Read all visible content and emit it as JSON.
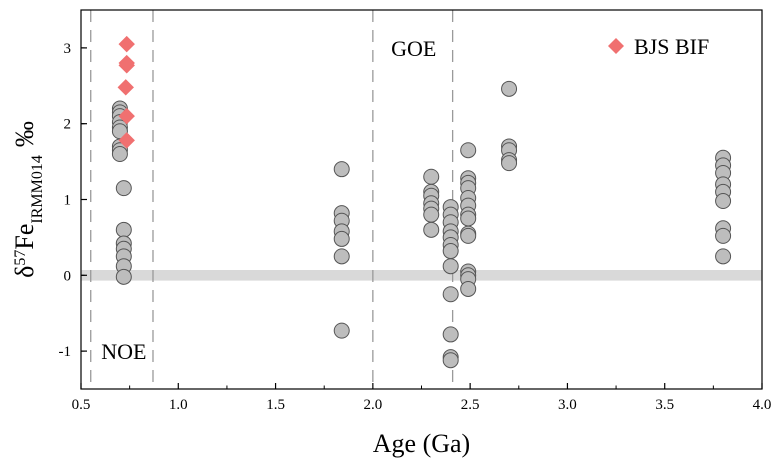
{
  "chart_data": {
    "type": "scatter",
    "xlabel": "Age (Ga)",
    "ylabel": {
      "delta": "δ",
      "mass": "57",
      "element": "Fe",
      "subscript": "IRMM014",
      "unit": "‰"
    },
    "xlim": [
      0.5,
      4.0
    ],
    "ylim": [
      -1.5,
      3.5
    ],
    "x_ticks": [
      0.5,
      1.0,
      1.5,
      2.0,
      2.5,
      3.0,
      3.5,
      4.0
    ],
    "x_tick_labels": [
      "0.5",
      "1.0",
      "1.5",
      "2.0",
      "2.5",
      "3.0",
      "3.5",
      "4.0"
    ],
    "y_ticks": [
      -1,
      0,
      1,
      2,
      3
    ],
    "y_tick_labels": [
      "-1",
      "0",
      "1",
      "2",
      "3"
    ],
    "grid": false,
    "legend_position": "top-right",
    "reference_band": {
      "y_min": -0.07,
      "y_max": 0.07,
      "color": "#d9d9d9"
    },
    "reference_lines": [
      {
        "x": 0.55
      },
      {
        "x": 0.87
      },
      {
        "x": 2.0
      },
      {
        "x": 2.41
      }
    ],
    "annotations": [
      {
        "text": "NOE",
        "x": 0.72,
        "y": -1.0
      },
      {
        "text": "GOE",
        "x": 2.21,
        "y": 3.0
      }
    ],
    "series": [
      {
        "marker": "circle",
        "fill": "#bdbdbd",
        "stroke": "#555555",
        "points": [
          [
            0.7,
            2.2
          ],
          [
            0.7,
            2.15
          ],
          [
            0.7,
            2.1
          ],
          [
            0.7,
            2.02
          ],
          [
            0.7,
            1.95
          ],
          [
            0.7,
            1.9
          ],
          [
            0.7,
            1.7
          ],
          [
            0.7,
            1.65
          ],
          [
            0.7,
            1.6
          ],
          [
            0.72,
            1.15
          ],
          [
            0.72,
            0.6
          ],
          [
            0.72,
            0.42
          ],
          [
            0.72,
            0.35
          ],
          [
            0.72,
            0.25
          ],
          [
            0.72,
            0.12
          ],
          [
            0.72,
            -0.02
          ],
          [
            1.84,
            1.4
          ],
          [
            1.84,
            0.82
          ],
          [
            1.84,
            0.72
          ],
          [
            1.84,
            0.58
          ],
          [
            1.84,
            0.48
          ],
          [
            1.84,
            0.25
          ],
          [
            1.84,
            -0.73
          ],
          [
            2.3,
            1.3
          ],
          [
            2.3,
            1.1
          ],
          [
            2.3,
            1.05
          ],
          [
            2.3,
            0.95
          ],
          [
            2.3,
            0.88
          ],
          [
            2.3,
            0.8
          ],
          [
            2.3,
            0.6
          ],
          [
            2.4,
            0.9
          ],
          [
            2.4,
            0.8
          ],
          [
            2.4,
            0.7
          ],
          [
            2.4,
            0.58
          ],
          [
            2.4,
            0.5
          ],
          [
            2.4,
            0.4
          ],
          [
            2.4,
            0.32
          ],
          [
            2.4,
            0.12
          ],
          [
            2.4,
            -0.25
          ],
          [
            2.4,
            -0.78
          ],
          [
            2.4,
            -1.08
          ],
          [
            2.4,
            -1.12
          ],
          [
            2.49,
            1.65
          ],
          [
            2.49,
            1.28
          ],
          [
            2.49,
            1.22
          ],
          [
            2.49,
            1.15
          ],
          [
            2.49,
            1.02
          ],
          [
            2.49,
            0.92
          ],
          [
            2.49,
            0.8
          ],
          [
            2.49,
            0.75
          ],
          [
            2.49,
            0.55
          ],
          [
            2.49,
            0.52
          ],
          [
            2.49,
            0.05
          ],
          [
            2.49,
            0.0
          ],
          [
            2.49,
            -0.05
          ],
          [
            2.49,
            -0.18
          ],
          [
            2.7,
            2.46
          ],
          [
            2.7,
            1.7
          ],
          [
            2.7,
            1.65
          ],
          [
            2.7,
            1.52
          ],
          [
            2.7,
            1.48
          ],
          [
            3.8,
            1.55
          ],
          [
            3.8,
            1.45
          ],
          [
            3.8,
            1.35
          ],
          [
            3.8,
            1.2
          ],
          [
            3.8,
            1.1
          ],
          [
            3.8,
            0.98
          ],
          [
            3.8,
            0.62
          ],
          [
            3.8,
            0.52
          ],
          [
            3.8,
            0.25
          ]
        ]
      },
      {
        "name": "BJS BIF",
        "marker": "diamond",
        "fill": "#f07070",
        "stroke": "#f07070",
        "points": [
          [
            0.735,
            3.05
          ],
          [
            0.735,
            2.8
          ],
          [
            0.735,
            2.77
          ],
          [
            0.73,
            2.48
          ],
          [
            0.735,
            2.1
          ],
          [
            0.735,
            1.78
          ]
        ]
      }
    ]
  }
}
